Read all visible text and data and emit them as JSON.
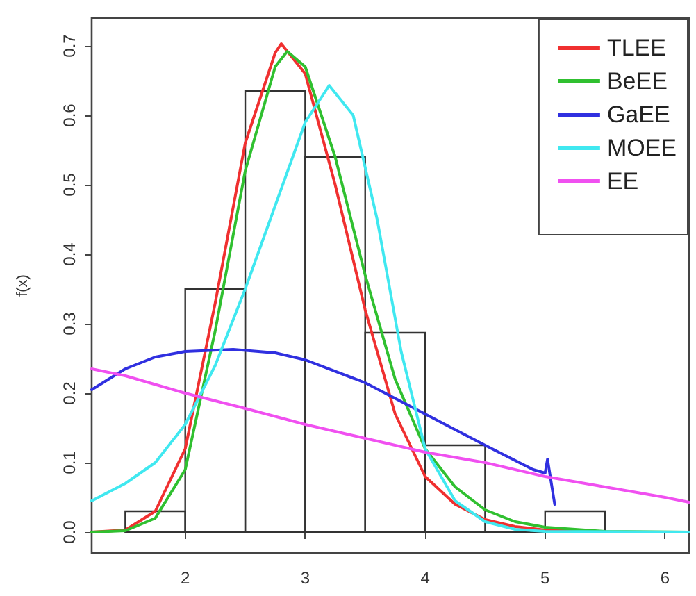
{
  "chart_data": {
    "type": "histogram",
    "ylabel": "f(x)",
    "bins": [
      1.5,
      2,
      2.5,
      3,
      3.5,
      4,
      4.5,
      5,
      5.5
    ],
    "values": [
      0.03,
      0.35,
      0.635,
      0.54,
      0.287,
      0.125,
      0,
      0.03
    ],
    "xlim": [
      1.22,
      6.2
    ],
    "ylim": [
      -0.03,
      0.74
    ],
    "xticks": [
      2,
      3,
      4,
      5,
      6
    ],
    "yticks": [
      {
        "value": 0,
        "label": "0.0"
      },
      0.1,
      0.2,
      0.3,
      0.4,
      0.5,
      0.6,
      0.7
    ],
    "legend": "top right",
    "grid": false,
    "series": [
      {
        "name": "TLEE",
        "type": "line",
        "color": "#f03030",
        "x": [
          1.22,
          1.5,
          1.75,
          2,
          2.25,
          2.5,
          2.75,
          2.8,
          3,
          3.25,
          3.5,
          3.75,
          4,
          4.25,
          4.5,
          4.75,
          5,
          5.5,
          6.2
        ],
        "values": [
          0,
          0.003,
          0.03,
          0.12,
          0.33,
          0.56,
          0.69,
          0.703,
          0.66,
          0.5,
          0.32,
          0.17,
          0.08,
          0.04,
          0.018,
          0.008,
          0.003,
          0,
          0
        ]
      },
      {
        "name": "BeEE",
        "type": "line",
        "color": "#30c030",
        "x": [
          1.22,
          1.5,
          1.75,
          2,
          2.25,
          2.5,
          2.75,
          2.85,
          3,
          3.25,
          3.5,
          3.75,
          4,
          4.25,
          4.5,
          4.75,
          5,
          5.5,
          6.2
        ],
        "values": [
          0,
          0.002,
          0.02,
          0.09,
          0.29,
          0.52,
          0.67,
          0.692,
          0.67,
          0.54,
          0.37,
          0.22,
          0.12,
          0.065,
          0.032,
          0.015,
          0.007,
          0.001,
          0
        ]
      },
      {
        "name": "GaEE",
        "type": "line",
        "color": "#3030e0",
        "x": [
          1.22,
          1.5,
          1.75,
          2,
          2.4,
          2.75,
          3,
          3.5,
          4,
          4.5,
          4.9,
          5,
          5.02,
          5.08
        ],
        "values": [
          0.205,
          0.235,
          0.252,
          0.26,
          0.263,
          0.258,
          0.248,
          0.215,
          0.17,
          0.125,
          0.09,
          0.085,
          0.105,
          0.04
        ]
      },
      {
        "name": "MOEE",
        "type": "line",
        "color": "#40e8f0",
        "x": [
          1.22,
          1.5,
          1.75,
          2,
          2.25,
          2.5,
          2.75,
          3,
          3.2,
          3.4,
          3.6,
          3.8,
          4,
          4.25,
          4.5,
          4.75,
          5,
          6.2
        ],
        "values": [
          0.045,
          0.07,
          0.1,
          0.155,
          0.24,
          0.35,
          0.47,
          0.59,
          0.643,
          0.6,
          0.45,
          0.26,
          0.12,
          0.045,
          0.015,
          0.004,
          0.001,
          0
        ]
      },
      {
        "name": "EE",
        "type": "line",
        "color": "#f050f0",
        "x": [
          1.22,
          1.5,
          2,
          2.5,
          3,
          3.5,
          4,
          4.5,
          5,
          5.5,
          6,
          6.2
        ],
        "values": [
          0.235,
          0.225,
          0.2,
          0.178,
          0.155,
          0.135,
          0.115,
          0.1,
          0.08,
          0.065,
          0.05,
          0.043
        ]
      }
    ]
  }
}
